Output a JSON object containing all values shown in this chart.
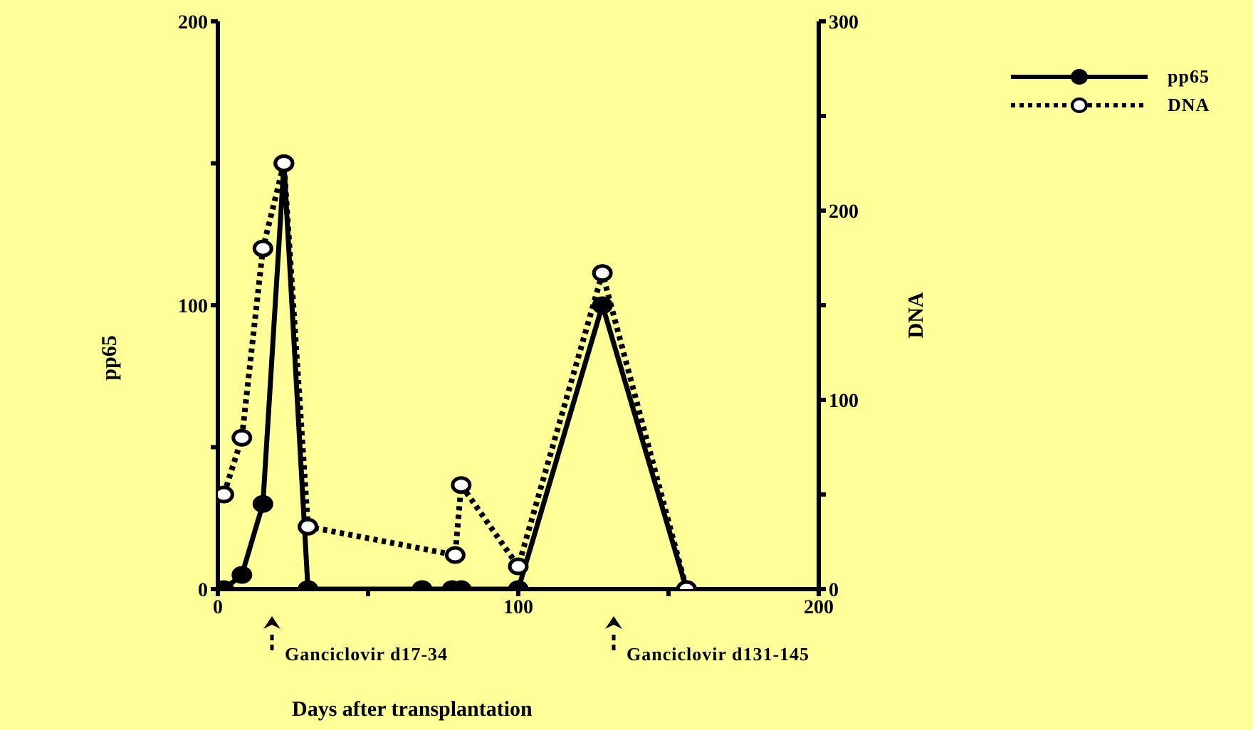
{
  "chart_data": {
    "type": "line",
    "xlabel": "Days after transplantation",
    "ylabel": "pp65",
    "y2label": "DNA",
    "xlim": [
      0,
      200
    ],
    "xticks": [
      0,
      {
        "value": 50,
        "label": null
      },
      100,
      {
        "value": 150,
        "label": null
      },
      200
    ],
    "ylim": [
      0,
      200
    ],
    "yticks": [
      0,
      {
        "value": 50,
        "label": null
      },
      100,
      {
        "value": 150,
        "label": null
      },
      200
    ],
    "y2lim": [
      0,
      300
    ],
    "y2ticks": [
      0,
      {
        "value": 50,
        "label": null
      },
      100,
      {
        "value": 150,
        "label": null
      },
      200,
      {
        "value": 250,
        "label": null
      },
      300
    ],
    "grid": false,
    "legend": "top right",
    "marker": "circle",
    "series": [
      {
        "name": "pp65",
        "color": "#000000",
        "line_style": "solid",
        "x": [
          2,
          8,
          15,
          22,
          30,
          68,
          78,
          81,
          100,
          128,
          156
        ],
        "values": [
          0,
          5,
          30,
          150,
          0,
          0,
          0,
          0,
          0,
          100,
          0
        ]
      },
      {
        "name": "DNA",
        "color": "#000000",
        "line_style": "dotted",
        "axis": "y2",
        "x": [
          2,
          8,
          15,
          22,
          30,
          79,
          81,
          100,
          128,
          156
        ],
        "values": [
          50,
          80,
          180,
          225,
          33,
          18,
          55,
          12,
          167,
          0
        ]
      }
    ],
    "annotations": [
      "Ganciclovir d17-34",
      "Ganciclovir d131-145"
    ]
  }
}
